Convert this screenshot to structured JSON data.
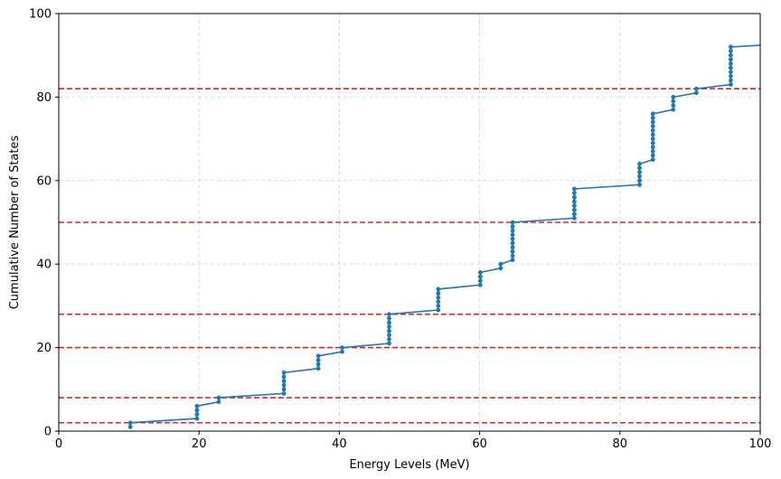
{
  "chart_data": {
    "type": "line",
    "title": "",
    "xlabel": "Energy Levels (MeV)",
    "ylabel": "Cumulative Number of States",
    "xlim": [
      0,
      100
    ],
    "ylim": [
      0,
      100
    ],
    "xticks": [
      0,
      20,
      40,
      60,
      80,
      100
    ],
    "yticks": [
      0,
      20,
      40,
      60,
      80,
      100
    ],
    "grid": true,
    "series": [
      {
        "color": "#1f77b4",
        "marker": "circle",
        "x": [
          10.2,
          10.2,
          19.7,
          19.7,
          19.7,
          19.7,
          22.8,
          22.8,
          32.1,
          32.1,
          32.1,
          32.1,
          32.1,
          32.1,
          37.0,
          37.0,
          37.0,
          37.0,
          40.4,
          40.4,
          47.1,
          47.1,
          47.1,
          47.1,
          47.1,
          47.1,
          47.1,
          47.1,
          54.1,
          54.1,
          54.1,
          54.1,
          54.1,
          54.1,
          60.1,
          60.1,
          60.1,
          60.1,
          63.0,
          63.0,
          64.7,
          64.7,
          64.7,
          64.7,
          64.7,
          64.7,
          64.7,
          64.7,
          64.7,
          64.7,
          73.5,
          73.5,
          73.5,
          73.5,
          73.5,
          73.5,
          73.5,
          73.5,
          82.8,
          82.8,
          82.8,
          82.8,
          82.8,
          82.8,
          84.7,
          84.7,
          84.7,
          84.7,
          84.7,
          84.7,
          84.7,
          84.7,
          84.7,
          84.7,
          84.7,
          84.7,
          87.6,
          87.6,
          87.6,
          87.6,
          90.9,
          90.9,
          95.8,
          95.8,
          95.8,
          95.8,
          95.8,
          95.8,
          95.8,
          95.8,
          95.8,
          95.8,
          100.0
        ],
        "y": [
          1,
          2,
          3,
          4,
          5,
          6,
          7,
          8,
          9,
          10,
          11,
          12,
          13,
          14,
          15,
          16,
          17,
          18,
          19,
          20,
          21,
          22,
          23,
          24,
          25,
          26,
          27,
          28,
          29,
          30,
          31,
          32,
          33,
          34,
          35,
          36,
          37,
          38,
          39,
          40,
          41,
          42,
          43,
          44,
          45,
          46,
          47,
          48,
          49,
          50,
          51,
          52,
          53,
          54,
          55,
          56,
          57,
          58,
          59,
          60,
          61,
          62,
          63,
          64,
          65,
          66,
          67,
          68,
          69,
          70,
          71,
          72,
          73,
          74,
          75,
          76,
          77,
          78,
          79,
          80,
          81,
          82,
          83,
          84,
          85,
          86,
          87,
          88,
          89,
          90,
          91,
          92,
          92.4
        ]
      }
    ],
    "hlines": {
      "color": "#d62728",
      "style": "dashed",
      "y": [
        2,
        8,
        20,
        28,
        50,
        82
      ]
    }
  }
}
